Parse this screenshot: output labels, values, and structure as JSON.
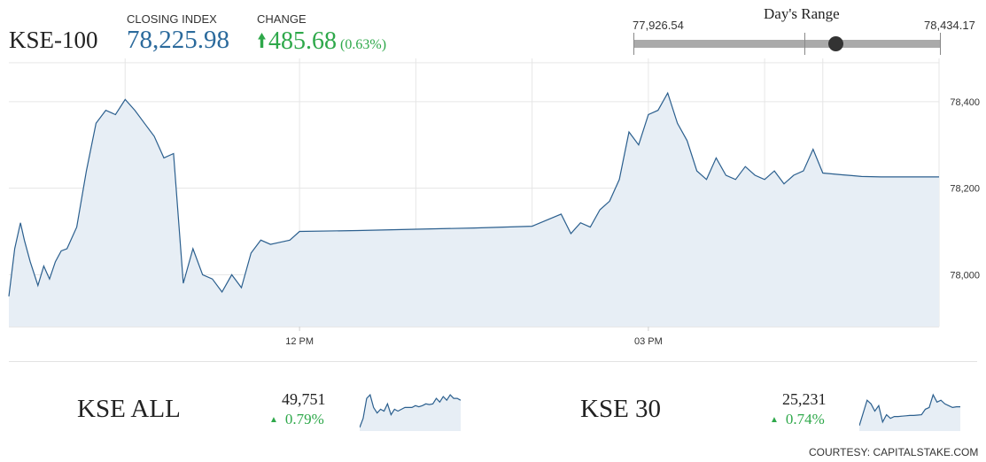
{
  "header": {
    "index_name": "KSE-100",
    "closing_label": "CLOSING INDEX",
    "closing_value": "78,225.98",
    "change_label": "CHANGE",
    "change_value": "485.68",
    "change_pct": "(0.63%)",
    "change_icon": "arrow-up-icon"
  },
  "days_range": {
    "title": "Day's Range",
    "low": "77,926.54",
    "high": "78,434.17",
    "current": 78225.98
  },
  "colors": {
    "line": "#2b5f8e",
    "area": "#e7eef5",
    "up": "#2ea84a",
    "value": "#2b6a9c"
  },
  "chart_data": [
    {
      "type": "area",
      "x_ticks": [
        "12 PM",
        "03 PM"
      ],
      "y_ticks": [
        "78,400",
        "78,200",
        "78,000"
      ],
      "y_tick_values": [
        78400,
        78200,
        78000
      ],
      "ylim": [
        77880,
        78500
      ],
      "grid": true,
      "x": [
        "09:30",
        "09:33",
        "09:36",
        "09:38",
        "09:41",
        "09:45",
        "09:48",
        "09:51",
        "09:54",
        "09:57",
        "10:00",
        "10:05",
        "10:10",
        "10:15",
        "10:20",
        "10:25",
        "10:30",
        "10:35",
        "10:40",
        "10:45",
        "10:50",
        "10:55",
        "11:00",
        "11:05",
        "11:10",
        "11:15",
        "11:20",
        "11:25",
        "11:30",
        "11:35",
        "11:40",
        "11:45",
        "11:50",
        "11:55",
        "12:00",
        "12:30",
        "13:00",
        "13:30",
        "14:00",
        "14:15",
        "14:20",
        "14:25",
        "14:30",
        "14:35",
        "14:40",
        "14:45",
        "14:50",
        "14:55",
        "15:00",
        "15:05",
        "15:10",
        "15:15",
        "15:20",
        "15:25",
        "15:30",
        "15:35",
        "15:40",
        "15:45",
        "15:50",
        "15:55",
        "16:00",
        "16:05",
        "16:10",
        "16:15",
        "16:20",
        "16:25",
        "16:30",
        "16:35",
        "16:40",
        "16:45",
        "16:50",
        "17:00",
        "17:30"
      ],
      "series": [
        {
          "values": [
            77950,
            78060,
            78120,
            78080,
            78030,
            77975,
            78020,
            77990,
            78030,
            78055,
            78060,
            78110,
            78240,
            78350,
            78380,
            78370,
            78405,
            78380,
            78350,
            78320,
            78270,
            78280,
            77980,
            78060,
            78000,
            77990,
            77960,
            78000,
            77970,
            78050,
            78080,
            78070,
            78075,
            78080,
            78100,
            78102,
            78105,
            78108,
            78112,
            78140,
            78095,
            78120,
            78110,
            78150,
            78170,
            78220,
            78330,
            78300,
            78370,
            78380,
            78420,
            78350,
            78310,
            78240,
            78220,
            78270,
            78230,
            78220,
            78250,
            78230,
            78220,
            78240,
            78210,
            78230,
            78240,
            78290,
            78235,
            78233,
            78231,
            78229,
            78227,
            78226,
            78226
          ]
        }
      ]
    },
    {
      "type": "line",
      "title": "KSE ALL",
      "value": "49,751",
      "change": "0.79%",
      "values": [
        0.05,
        0.3,
        0.85,
        0.95,
        0.6,
        0.45,
        0.55,
        0.5,
        0.7,
        0.4,
        0.55,
        0.5,
        0.55,
        0.6,
        0.6,
        0.6,
        0.65,
        0.62,
        0.65,
        0.7,
        0.68,
        0.7,
        0.85,
        0.75,
        0.9,
        0.8,
        0.95,
        0.85,
        0.85,
        0.8
      ]
    },
    {
      "type": "line",
      "title": "KSE 30",
      "value": "25,231",
      "change": "0.74%",
      "values": [
        0.1,
        0.45,
        0.8,
        0.7,
        0.5,
        0.65,
        0.2,
        0.4,
        0.3,
        0.35,
        0.35,
        0.36,
        0.37,
        0.38,
        0.38,
        0.39,
        0.4,
        0.55,
        0.6,
        0.95,
        0.75,
        0.8,
        0.7,
        0.65,
        0.6,
        0.62,
        0.62
      ]
    }
  ],
  "courtesy": "COURTESY: CAPITALSTAKE.COM"
}
